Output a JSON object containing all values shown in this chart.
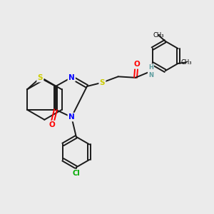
{
  "bg_color": "#ebebeb",
  "atom_colors": {
    "S": "#cccc00",
    "N": "#0000ff",
    "O": "#ff0000",
    "Cl": "#00aa00",
    "C": "#000000",
    "H": "#5f9ea0"
  },
  "bond_color": "#1a1a1a",
  "bond_width": 1.4,
  "figsize": [
    3.0,
    3.0
  ],
  "dpi": 100
}
